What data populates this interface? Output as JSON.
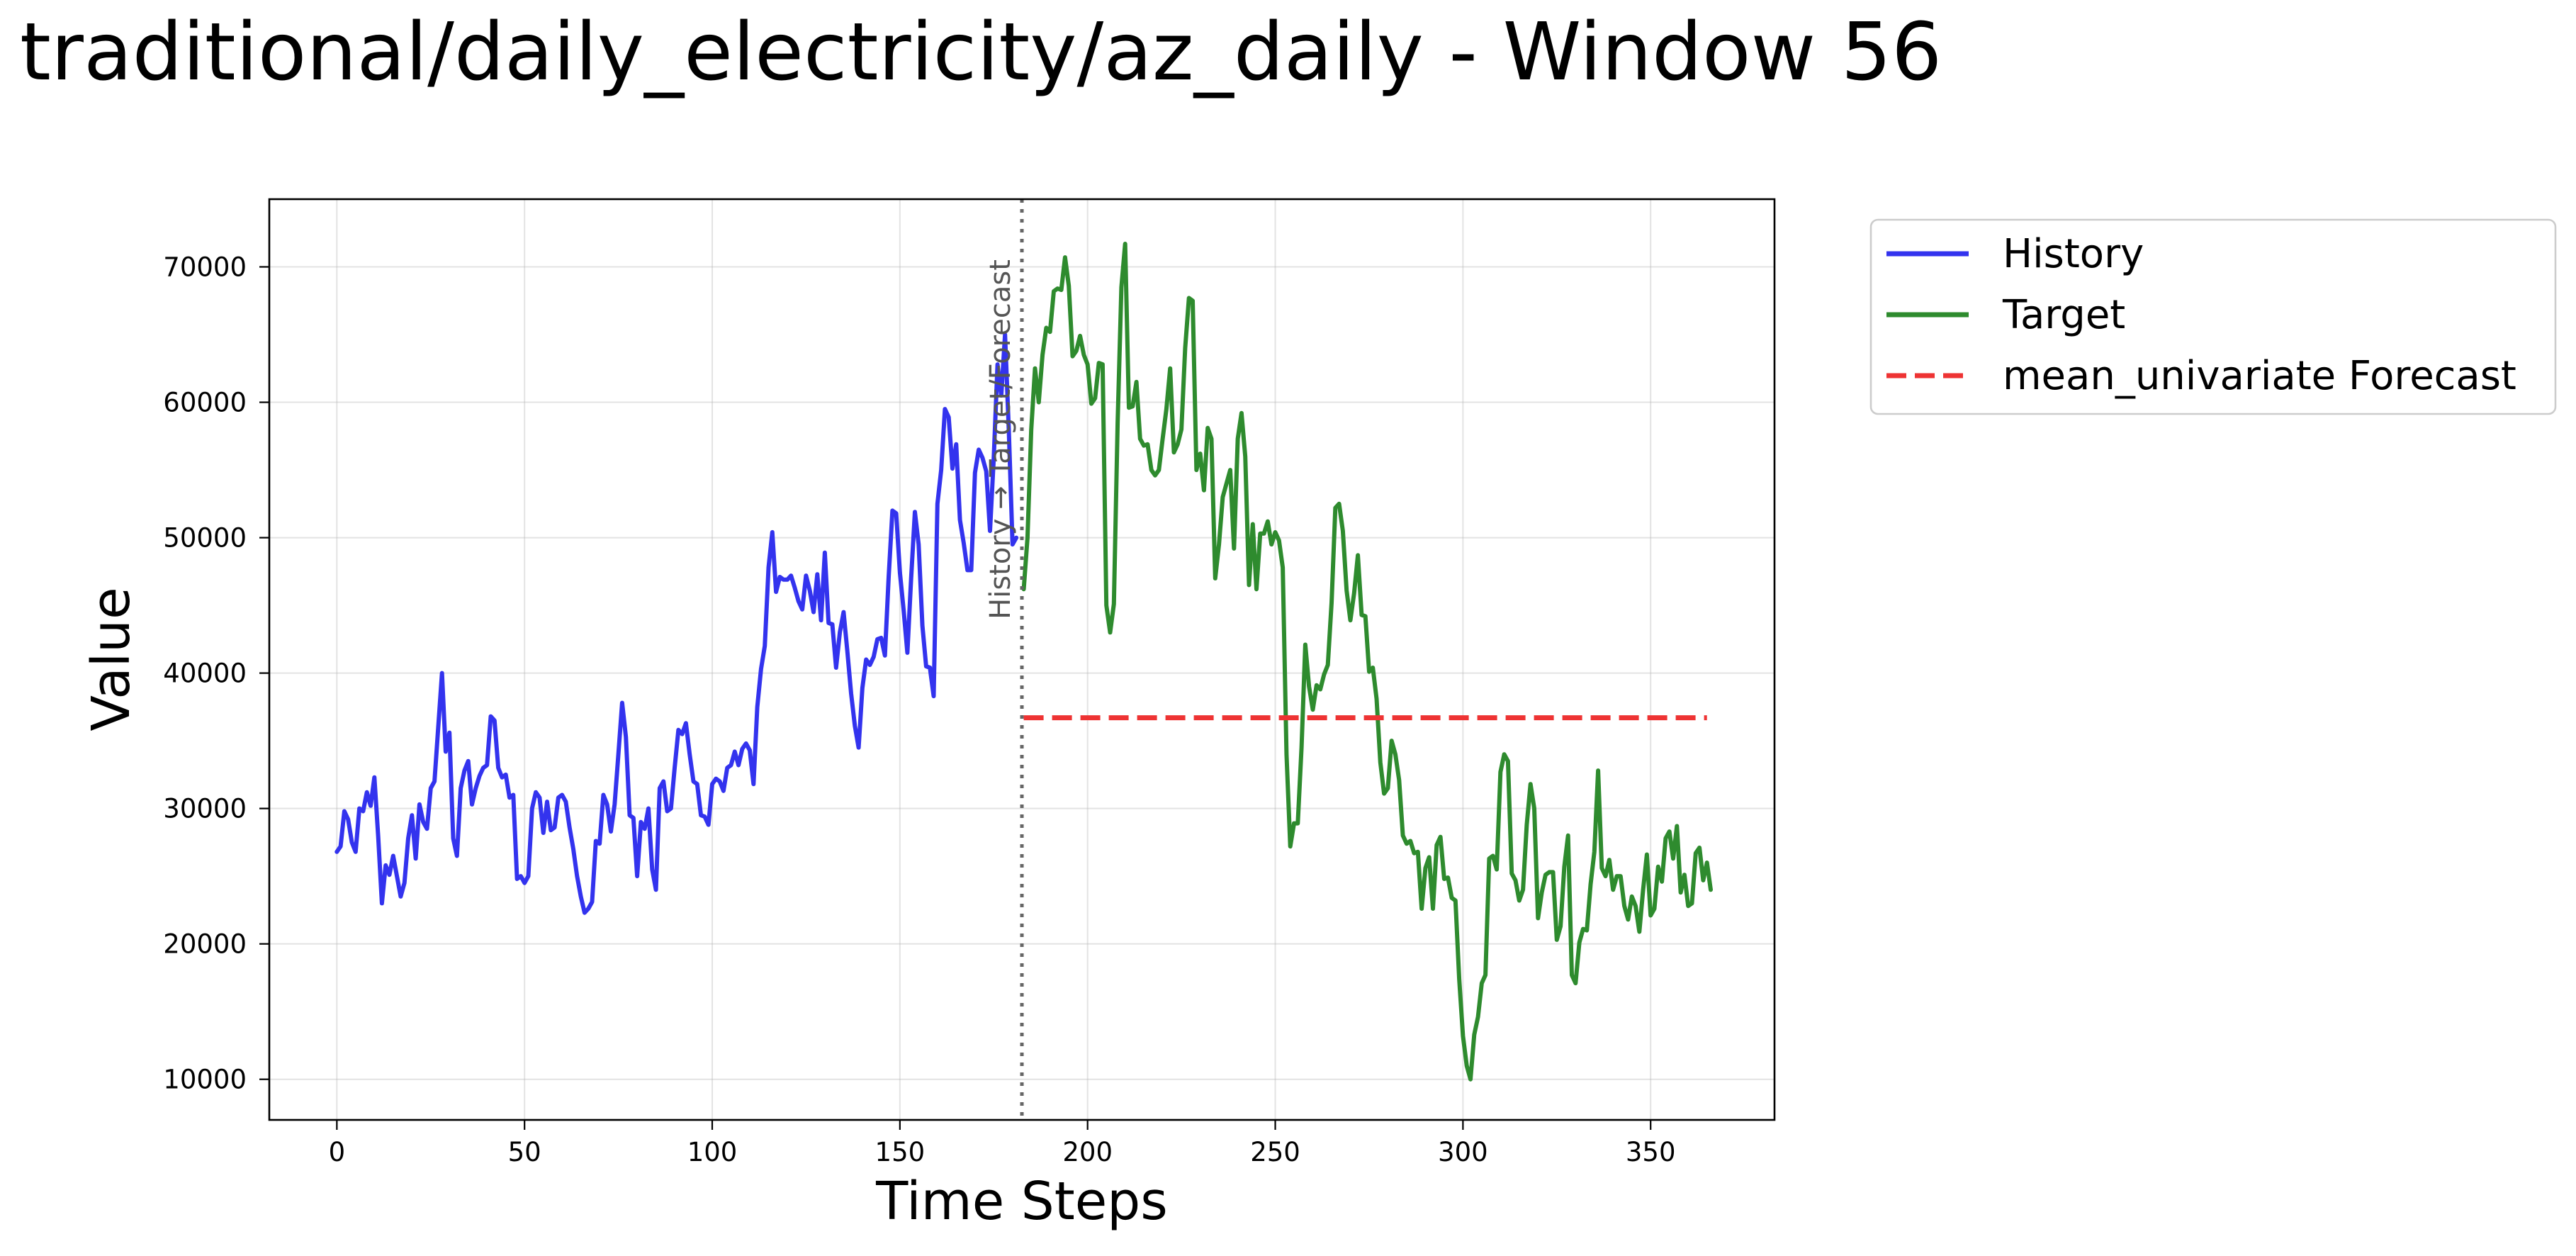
{
  "chart_data": {
    "type": "line",
    "title": "traditional/daily_electricity/az_daily - Window 56",
    "xlabel": "Time Steps",
    "ylabel": "Value",
    "xlim": [
      -18,
      383
    ],
    "ylim": [
      7000,
      75000
    ],
    "xticks": [
      0,
      50,
      100,
      150,
      200,
      250,
      300,
      350
    ],
    "yticks": [
      10000,
      20000,
      30000,
      40000,
      50000,
      60000,
      70000
    ],
    "grid": true,
    "legend_position": "outside-top-right",
    "divider": {
      "x": 182.5,
      "label": "History → Target/Forecast",
      "color": "#666666"
    },
    "series": [
      {
        "name": "History",
        "color": "#3333ee",
        "style": "solid",
        "x_start": 0,
        "values": [
          26800,
          27200,
          29800,
          29200,
          27500,
          26800,
          30000,
          29800,
          31200,
          30200,
          32300,
          28000,
          23000,
          25800,
          25100,
          26500,
          25000,
          23500,
          24500,
          27800,
          29500,
          26300,
          30300,
          29000,
          28500,
          31500,
          32000,
          36000,
          40000,
          34200,
          35600,
          27800,
          26500,
          31500,
          32800,
          33500,
          30300,
          31500,
          32400,
          33000,
          33200,
          36800,
          36500,
          33000,
          32300,
          32500,
          30800,
          31000,
          24800,
          25000,
          24500,
          25000,
          30000,
          31200,
          30800,
          28200,
          30500,
          28400,
          28600,
          30800,
          31000,
          30500,
          28600,
          27000,
          25000,
          23500,
          22300,
          22600,
          23100,
          27600,
          27400,
          31000,
          30300,
          28300,
          30300,
          34000,
          37800,
          35300,
          29500,
          29300,
          25000,
          29000,
          28500,
          30000,
          25500,
          24000,
          31500,
          32000,
          29800,
          30000,
          33000,
          35800,
          35500,
          36300,
          34000,
          32000,
          31800,
          29500,
          29400,
          28800,
          31800,
          32200,
          32000,
          31300,
          33000,
          33200,
          34200,
          33200,
          34400,
          34800,
          34300,
          31800,
          37500,
          40300,
          42000,
          47800,
          50400,
          46000,
          47100,
          46900,
          46900,
          47200,
          46300,
          45300,
          44700,
          47200,
          46100,
          44500,
          47300,
          43900,
          48900,
          43700,
          43600,
          40400,
          43000,
          44500,
          41600,
          38500,
          36100,
          34500,
          38900,
          41000,
          40600,
          41200,
          42500,
          42600,
          41300,
          47100,
          52000,
          51800,
          47400,
          44600,
          41500,
          47000,
          51900,
          49500,
          43500,
          40500,
          40400,
          38300,
          52500,
          55000,
          59500,
          58900,
          55100,
          56900,
          51300,
          49600,
          47600,
          47600,
          54800,
          56500,
          55900,
          54900,
          50500,
          55900,
          62800,
          60500,
          65000,
          58000,
          49500,
          50000
        ]
      },
      {
        "name": "Target",
        "color": "#2e8b2e",
        "style": "solid",
        "x_start": 183,
        "values": [
          46200,
          50000,
          58000,
          62500,
          60000,
          63500,
          65500,
          65200,
          68200,
          68400,
          68300,
          70700,
          68600,
          63400,
          63800,
          64900,
          63500,
          62800,
          59900,
          60300,
          62900,
          62800,
          45000,
          43000,
          45100,
          58500,
          68500,
          71700,
          59600,
          59700,
          61500,
          57300,
          56800,
          56900,
          55000,
          54600,
          55000,
          57300,
          59500,
          62500,
          56300,
          56900,
          58000,
          64000,
          67700,
          67500,
          55000,
          56200,
          53500,
          58100,
          57300,
          47000,
          49500,
          53000,
          54000,
          55000,
          49200,
          57300,
          59200,
          56000,
          46500,
          51000,
          46200,
          50300,
          50300,
          51200,
          49500,
          50400,
          49800,
          47800,
          34000,
          27200,
          28900,
          28900,
          34500,
          42100,
          39000,
          37300,
          39100,
          38800,
          39900,
          40600,
          45200,
          52200,
          52500,
          50500,
          46100,
          43900,
          45900,
          48700,
          44300,
          44200,
          40100,
          40400,
          38100,
          33400,
          31100,
          31500,
          35000,
          34000,
          32100,
          28000,
          27400,
          27600,
          26700,
          26800,
          22600,
          25600,
          26400,
          22600,
          27300,
          27900,
          24800,
          24900,
          23400,
          23200,
          17400,
          13200,
          11000,
          10000,
          13300,
          14600,
          17100,
          17700,
          26300,
          26500,
          25500,
          32700,
          34000,
          33500,
          25200,
          24700,
          23200,
          24000,
          28800,
          31800,
          30000,
          21900,
          23800,
          25100,
          25300,
          25300,
          20300,
          21300,
          25700,
          28000,
          17700,
          17100,
          20100,
          21100,
          21000,
          24400,
          26800,
          32800,
          25600,
          25000,
          26200,
          24000,
          25000,
          25000,
          22800,
          21800,
          23500,
          22800,
          20900,
          24000,
          26600,
          22100,
          22600,
          25700,
          24600,
          27800,
          28300,
          26300,
          28700,
          23800,
          25100,
          22800,
          23000,
          26700,
          27100,
          24700,
          26000,
          24000
        ]
      },
      {
        "name": "mean_univariate Forecast",
        "color": "#ee3333",
        "style": "dashed",
        "x_start": 183,
        "x_end": 365,
        "values": [
          36700
        ]
      }
    ]
  }
}
